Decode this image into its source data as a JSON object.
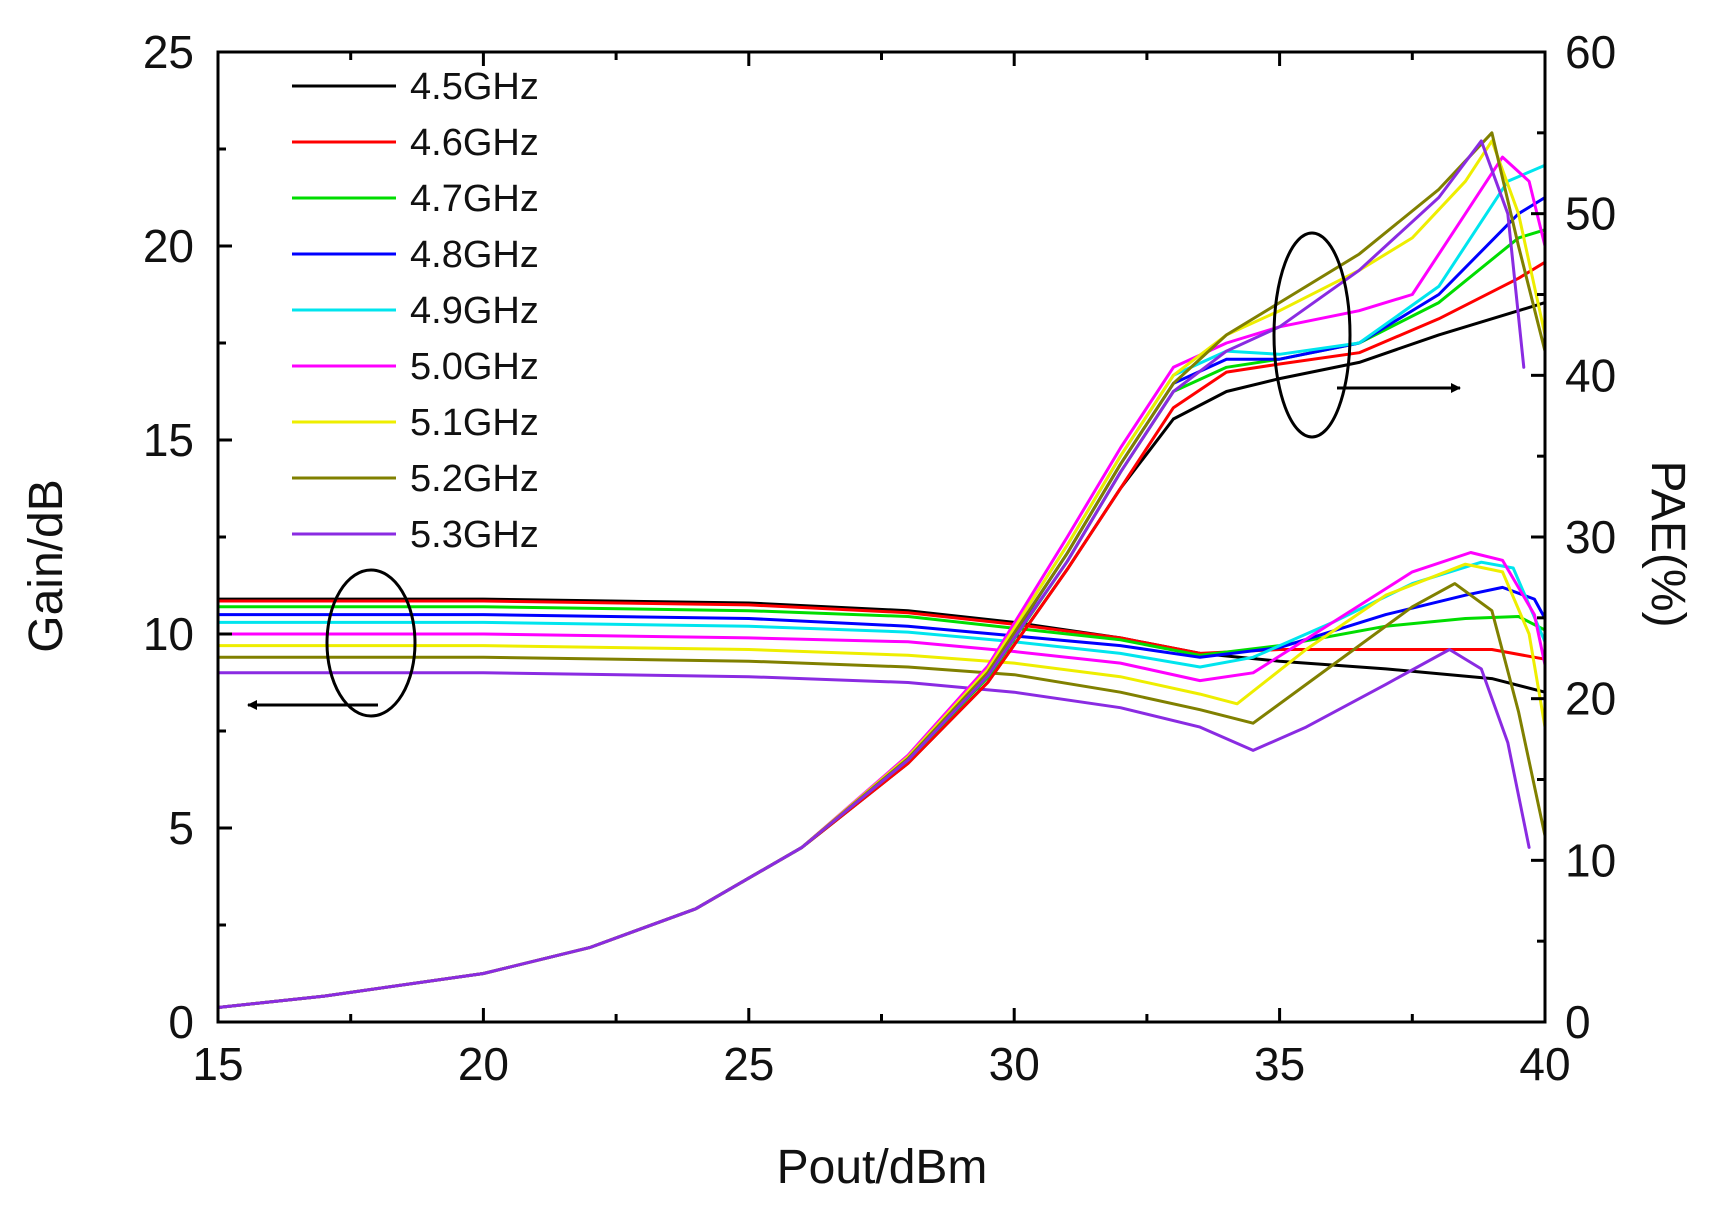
{
  "chart_data": {
    "type": "line",
    "xlabel": "Pout/dBm",
    "ylabel_left": "Gain/dB",
    "ylabel_right": "PAE(%)",
    "xlim": [
      15,
      40
    ],
    "ylim_left": [
      0,
      25
    ],
    "ylim_right": [
      0,
      60
    ],
    "x_ticks": [
      "15",
      "20",
      "25",
      "30",
      "35",
      "40"
    ],
    "y_left_ticks": [
      "0",
      "5",
      "10",
      "15",
      "20",
      "25"
    ],
    "y_right_ticks": [
      "0",
      "10",
      "20",
      "30",
      "40",
      "50",
      "60"
    ],
    "legend_position": "top-left",
    "series": [
      {
        "name": "4.5GHz",
        "color": "#000000",
        "gain": [
          [
            15,
            10.9
          ],
          [
            20,
            10.9
          ],
          [
            25,
            10.8
          ],
          [
            28,
            10.6
          ],
          [
            30,
            10.3
          ],
          [
            32,
            9.9
          ],
          [
            33.5,
            9.5
          ],
          [
            35,
            9.3
          ],
          [
            37,
            9.1
          ],
          [
            39,
            8.85
          ],
          [
            40,
            8.5
          ]
        ],
        "pae": [
          [
            15,
            0.9
          ],
          [
            17,
            1.6
          ],
          [
            20,
            3
          ],
          [
            22,
            4.6
          ],
          [
            24,
            7
          ],
          [
            26,
            10.8
          ],
          [
            28,
            16
          ],
          [
            29.5,
            21
          ],
          [
            31,
            28
          ],
          [
            32,
            33
          ],
          [
            33,
            37.3
          ],
          [
            34,
            39
          ],
          [
            35,
            39.8
          ],
          [
            36.5,
            40.8
          ],
          [
            38,
            42.5
          ],
          [
            39.5,
            44
          ],
          [
            40,
            44.5
          ]
        ]
      },
      {
        "name": "4.6GHz",
        "color": "#ff0000",
        "gain": [
          [
            15,
            10.85
          ],
          [
            20,
            10.85
          ],
          [
            25,
            10.75
          ],
          [
            28,
            10.55
          ],
          [
            30,
            10.25
          ],
          [
            32,
            9.9
          ],
          [
            33.5,
            9.5
          ],
          [
            35,
            9.6
          ],
          [
            37,
            9.6
          ],
          [
            39,
            9.6
          ],
          [
            40,
            9.35
          ]
        ],
        "pae": [
          [
            15,
            0.9
          ],
          [
            17,
            1.6
          ],
          [
            20,
            3
          ],
          [
            22,
            4.6
          ],
          [
            24,
            7
          ],
          [
            26,
            10.8
          ],
          [
            28,
            16
          ],
          [
            29.5,
            21
          ],
          [
            31,
            28
          ],
          [
            32,
            33
          ],
          [
            33,
            38
          ],
          [
            34,
            40.2
          ],
          [
            35,
            40.7
          ],
          [
            36.5,
            41.4
          ],
          [
            38,
            43.5
          ],
          [
            39.5,
            46
          ],
          [
            40,
            47
          ]
        ]
      },
      {
        "name": "4.7GHz",
        "color": "#00dd00",
        "gain": [
          [
            15,
            10.7
          ],
          [
            20,
            10.7
          ],
          [
            25,
            10.6
          ],
          [
            28,
            10.45
          ],
          [
            30,
            10.15
          ],
          [
            32,
            9.85
          ],
          [
            33.5,
            9.45
          ],
          [
            35,
            9.7
          ],
          [
            37,
            10.2
          ],
          [
            38.5,
            10.4
          ],
          [
            39.5,
            10.45
          ],
          [
            40,
            10.1
          ]
        ],
        "pae": [
          [
            15,
            0.9
          ],
          [
            17,
            1.6
          ],
          [
            20,
            3
          ],
          [
            22,
            4.6
          ],
          [
            24,
            7
          ],
          [
            26,
            10.8
          ],
          [
            28,
            16.2
          ],
          [
            29.5,
            21.3
          ],
          [
            31,
            28.5
          ],
          [
            32,
            34
          ],
          [
            33,
            39
          ],
          [
            34,
            40.5
          ],
          [
            35,
            41
          ],
          [
            36.5,
            42
          ],
          [
            38,
            44.5
          ],
          [
            39.5,
            48.5
          ],
          [
            40,
            49
          ]
        ]
      },
      {
        "name": "4.8GHz",
        "color": "#0000ff",
        "gain": [
          [
            15,
            10.5
          ],
          [
            20,
            10.5
          ],
          [
            25,
            10.4
          ],
          [
            28,
            10.2
          ],
          [
            30,
            9.95
          ],
          [
            32,
            9.7
          ],
          [
            33.5,
            9.4
          ],
          [
            35,
            9.65
          ],
          [
            37,
            10.5
          ],
          [
            38.5,
            11
          ],
          [
            39.2,
            11.2
          ],
          [
            39.8,
            10.9
          ],
          [
            40,
            10.4
          ]
        ],
        "pae": [
          [
            15,
            0.9
          ],
          [
            17,
            1.6
          ],
          [
            20,
            3
          ],
          [
            22,
            4.6
          ],
          [
            24,
            7
          ],
          [
            26,
            10.8
          ],
          [
            28,
            16.3
          ],
          [
            29.5,
            21.5
          ],
          [
            31,
            29
          ],
          [
            32,
            34.5
          ],
          [
            33,
            39.5
          ],
          [
            34,
            41
          ],
          [
            35,
            41
          ],
          [
            36.5,
            42
          ],
          [
            38,
            45
          ],
          [
            39.5,
            50
          ],
          [
            40,
            51
          ]
        ]
      },
      {
        "name": "4.9GHz",
        "color": "#00e5ee",
        "gain": [
          [
            15,
            10.3
          ],
          [
            20,
            10.3
          ],
          [
            25,
            10.2
          ],
          [
            28,
            10.05
          ],
          [
            30,
            9.8
          ],
          [
            32,
            9.5
          ],
          [
            33.5,
            9.15
          ],
          [
            34.5,
            9.4
          ],
          [
            36,
            10.3
          ],
          [
            37.5,
            11.3
          ],
          [
            38.8,
            11.85
          ],
          [
            39.4,
            11.7
          ],
          [
            40,
            9.8
          ]
        ],
        "pae": [
          [
            15,
            0.9
          ],
          [
            17,
            1.6
          ],
          [
            20,
            3
          ],
          [
            22,
            4.6
          ],
          [
            24,
            7
          ],
          [
            26,
            10.8
          ],
          [
            28,
            16.4
          ],
          [
            29.5,
            21.8
          ],
          [
            31,
            29.5
          ],
          [
            32,
            35
          ],
          [
            33,
            40
          ],
          [
            34,
            41.5
          ],
          [
            35,
            41.3
          ],
          [
            36.5,
            42
          ],
          [
            38,
            45.5
          ],
          [
            39.3,
            52
          ],
          [
            40,
            53
          ]
        ]
      },
      {
        "name": "5.0GHz",
        "color": "#ff00ff",
        "gain": [
          [
            15,
            10.0
          ],
          [
            20,
            10.0
          ],
          [
            25,
            9.9
          ],
          [
            28,
            9.8
          ],
          [
            30,
            9.55
          ],
          [
            32,
            9.25
          ],
          [
            33.5,
            8.8
          ],
          [
            34.5,
            9.0
          ],
          [
            36,
            10.3
          ],
          [
            37.5,
            11.6
          ],
          [
            38.6,
            12.1
          ],
          [
            39.2,
            11.9
          ],
          [
            39.8,
            10.5
          ],
          [
            40,
            9.2
          ]
        ],
        "pae": [
          [
            15,
            0.9
          ],
          [
            17,
            1.6
          ],
          [
            20,
            3
          ],
          [
            22,
            4.6
          ],
          [
            24,
            7
          ],
          [
            26,
            10.8
          ],
          [
            28,
            16.5
          ],
          [
            29.5,
            22
          ],
          [
            31,
            30
          ],
          [
            32,
            35.5
          ],
          [
            33,
            40.5
          ],
          [
            34,
            42
          ],
          [
            35,
            43
          ],
          [
            36.5,
            44
          ],
          [
            37.5,
            45
          ],
          [
            38.5,
            50
          ],
          [
            39.2,
            53.5
          ],
          [
            39.7,
            52
          ],
          [
            40,
            48
          ]
        ]
      },
      {
        "name": "5.1GHz",
        "color": "#eeee00",
        "gain": [
          [
            15,
            9.7
          ],
          [
            20,
            9.7
          ],
          [
            25,
            9.6
          ],
          [
            28,
            9.45
          ],
          [
            30,
            9.25
          ],
          [
            32,
            8.9
          ],
          [
            33.5,
            8.45
          ],
          [
            34.2,
            8.2
          ],
          [
            35.5,
            9.6
          ],
          [
            37,
            11
          ],
          [
            38.5,
            11.8
          ],
          [
            39.2,
            11.6
          ],
          [
            39.7,
            10
          ],
          [
            40,
            7.6
          ]
        ],
        "pae": [
          [
            15,
            0.9
          ],
          [
            17,
            1.6
          ],
          [
            20,
            3
          ],
          [
            22,
            4.6
          ],
          [
            24,
            7
          ],
          [
            26,
            10.8
          ],
          [
            28,
            16.4
          ],
          [
            29.5,
            21.8
          ],
          [
            31,
            29.5
          ],
          [
            32,
            35
          ],
          [
            33,
            40
          ],
          [
            34,
            42.5
          ],
          [
            35,
            44
          ],
          [
            36.5,
            46.5
          ],
          [
            37.5,
            48.5
          ],
          [
            38.5,
            52
          ],
          [
            39,
            54.5
          ],
          [
            39.5,
            50
          ],
          [
            40,
            42.5
          ]
        ]
      },
      {
        "name": "5.2GHz",
        "color": "#808000",
        "gain": [
          [
            15,
            9.4
          ],
          [
            20,
            9.4
          ],
          [
            25,
            9.3
          ],
          [
            28,
            9.15
          ],
          [
            30,
            8.95
          ],
          [
            32,
            8.5
          ],
          [
            33.5,
            8.05
          ],
          [
            34.5,
            7.7
          ],
          [
            36,
            9.2
          ],
          [
            37.5,
            10.7
          ],
          [
            38.3,
            11.3
          ],
          [
            39,
            10.6
          ],
          [
            39.5,
            8
          ],
          [
            40,
            4.8
          ]
        ],
        "pae": [
          [
            15,
            0.9
          ],
          [
            17,
            1.6
          ],
          [
            20,
            3
          ],
          [
            22,
            4.6
          ],
          [
            24,
            7
          ],
          [
            26,
            10.8
          ],
          [
            28,
            16.3
          ],
          [
            29.5,
            21.6
          ],
          [
            31,
            29
          ],
          [
            32,
            34.5
          ],
          [
            33,
            39.5
          ],
          [
            34,
            42.5
          ],
          [
            35,
            44.5
          ],
          [
            36.5,
            47.5
          ],
          [
            38,
            51.5
          ],
          [
            39,
            55
          ],
          [
            39.5,
            48
          ],
          [
            40,
            41.5
          ]
        ]
      },
      {
        "name": "5.3GHz",
        "color": "#8a2be2",
        "gain": [
          [
            15,
            9.0
          ],
          [
            20,
            9.0
          ],
          [
            25,
            8.9
          ],
          [
            28,
            8.75
          ],
          [
            30,
            8.5
          ],
          [
            32,
            8.1
          ],
          [
            33.5,
            7.6
          ],
          [
            34.5,
            7.0
          ],
          [
            35.5,
            7.6
          ],
          [
            37,
            8.7
          ],
          [
            38.2,
            9.6
          ],
          [
            38.8,
            9.1
          ],
          [
            39.3,
            7.2
          ],
          [
            39.7,
            4.5
          ]
        ],
        "pae": [
          [
            15,
            0.9
          ],
          [
            17,
            1.6
          ],
          [
            20,
            3
          ],
          [
            22,
            4.6
          ],
          [
            24,
            7
          ],
          [
            26,
            10.8
          ],
          [
            28,
            16.2
          ],
          [
            29.5,
            21.4
          ],
          [
            31,
            28.5
          ],
          [
            32,
            34
          ],
          [
            33,
            39
          ],
          [
            34,
            41.5
          ],
          [
            35,
            43
          ],
          [
            36.5,
            46.5
          ],
          [
            38,
            51
          ],
          [
            38.8,
            54.5
          ],
          [
            39.3,
            50
          ],
          [
            39.6,
            40.5
          ]
        ]
      }
    ]
  }
}
